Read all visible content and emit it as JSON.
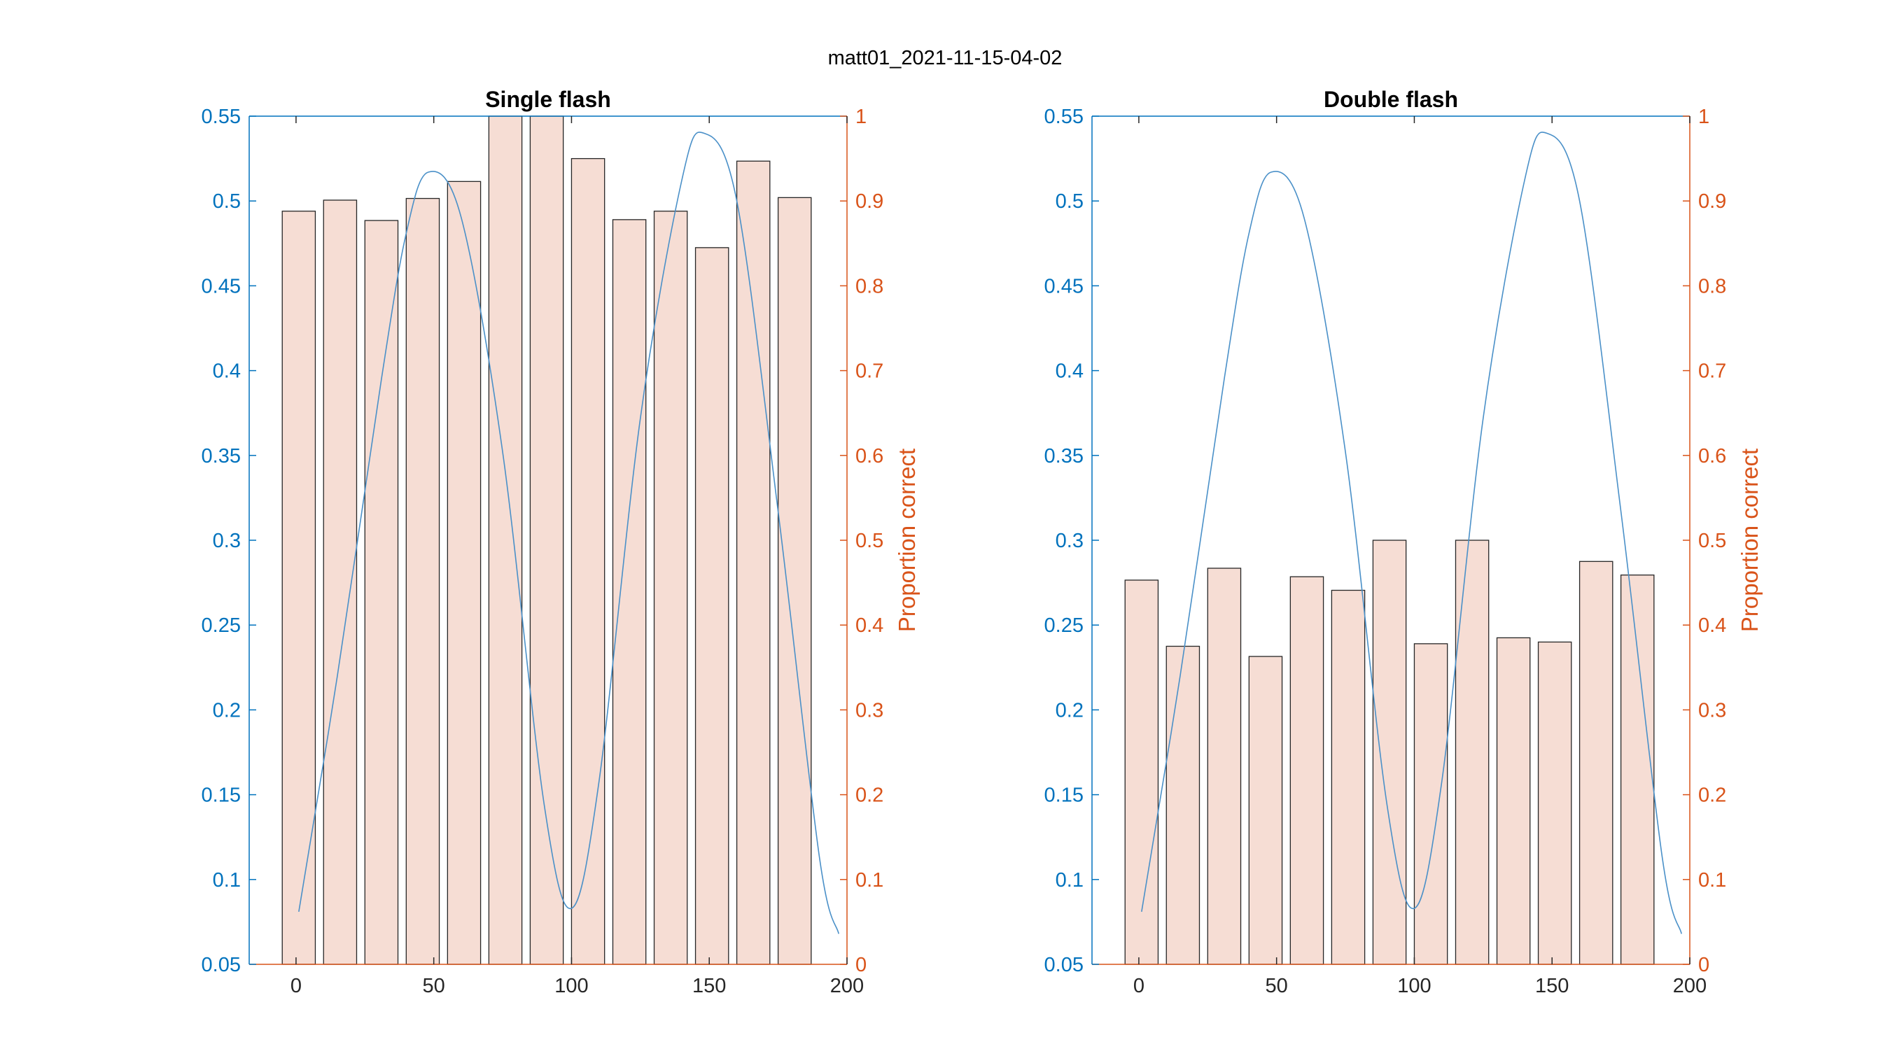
{
  "figure": {
    "title": "matt01_2021-11-15-04-02"
  },
  "colors": {
    "left_axis": "#0072BD",
    "right_axis": "#D95319",
    "bar_fill": "#F6DDD4",
    "bar_edge": "#262626",
    "curve": "#4A90C8",
    "x_axis": "#262626"
  },
  "chart_data": [
    {
      "type": "bar",
      "title": "Single flash",
      "xlabel": "",
      "xlim": [
        -17,
        200
      ],
      "xticks": [
        0,
        50,
        100,
        150,
        200
      ],
      "left_axis": {
        "ylim": [
          0.05,
          0.55
        ],
        "ticks": [
          0.05,
          0.1,
          0.15,
          0.2,
          0.25,
          0.3,
          0.35,
          0.4,
          0.45,
          0.5,
          0.55
        ]
      },
      "right_axis": {
        "label": "Proportion correct",
        "ylim": [
          0,
          1
        ],
        "ticks": [
          0,
          0.1,
          0.2,
          0.3,
          0.4,
          0.5,
          0.6,
          0.7,
          0.8,
          0.9,
          1
        ]
      },
      "bars": {
        "x": [
          1,
          16,
          31,
          46,
          61,
          76,
          91,
          106,
          121,
          136,
          151,
          166,
          181
        ],
        "width": 12,
        "values": [
          0.888,
          0.901,
          0.877,
          0.903,
          0.923,
          1.0,
          1.0,
          0.95,
          0.878,
          0.888,
          0.845,
          0.947,
          0.904
        ]
      },
      "curve": {
        "x": [
          1,
          15,
          31,
          40,
          48,
          60,
          75,
          90,
          100,
          110,
          125,
          140,
          148,
          160,
          175,
          190,
          197
        ],
        "y": [
          0.081,
          0.22,
          0.395,
          0.481,
          0.517,
          0.49,
          0.352,
          0.145,
          0.083,
          0.158,
          0.372,
          0.512,
          0.54,
          0.5,
          0.317,
          0.113,
          0.068
        ]
      }
    },
    {
      "type": "bar",
      "title": "Double flash",
      "xlabel": "",
      "xlim": [
        -17,
        200
      ],
      "xticks": [
        0,
        50,
        100,
        150,
        200
      ],
      "left_axis": {
        "ylim": [
          0.05,
          0.55
        ],
        "ticks": [
          0.05,
          0.1,
          0.15,
          0.2,
          0.25,
          0.3,
          0.35,
          0.4,
          0.45,
          0.5,
          0.55
        ]
      },
      "right_axis": {
        "label": "Proportion correct",
        "ylim": [
          0,
          1
        ],
        "ticks": [
          0,
          0.1,
          0.2,
          0.3,
          0.4,
          0.5,
          0.6,
          0.7,
          0.8,
          0.9,
          1
        ]
      },
      "bars": {
        "x": [
          1,
          16,
          31,
          46,
          61,
          76,
          91,
          106,
          121,
          136,
          151,
          166,
          181
        ],
        "width": 12,
        "values": [
          0.453,
          0.375,
          0.467,
          0.363,
          0.457,
          0.441,
          0.5,
          0.378,
          0.5,
          0.385,
          0.38,
          0.475,
          0.459
        ]
      },
      "curve": {
        "x": [
          1,
          15,
          31,
          40,
          48,
          60,
          75,
          90,
          100,
          110,
          125,
          140,
          148,
          160,
          175,
          190,
          197
        ],
        "y": [
          0.081,
          0.22,
          0.395,
          0.481,
          0.517,
          0.49,
          0.352,
          0.145,
          0.083,
          0.158,
          0.372,
          0.512,
          0.54,
          0.5,
          0.317,
          0.113,
          0.068
        ]
      }
    }
  ]
}
